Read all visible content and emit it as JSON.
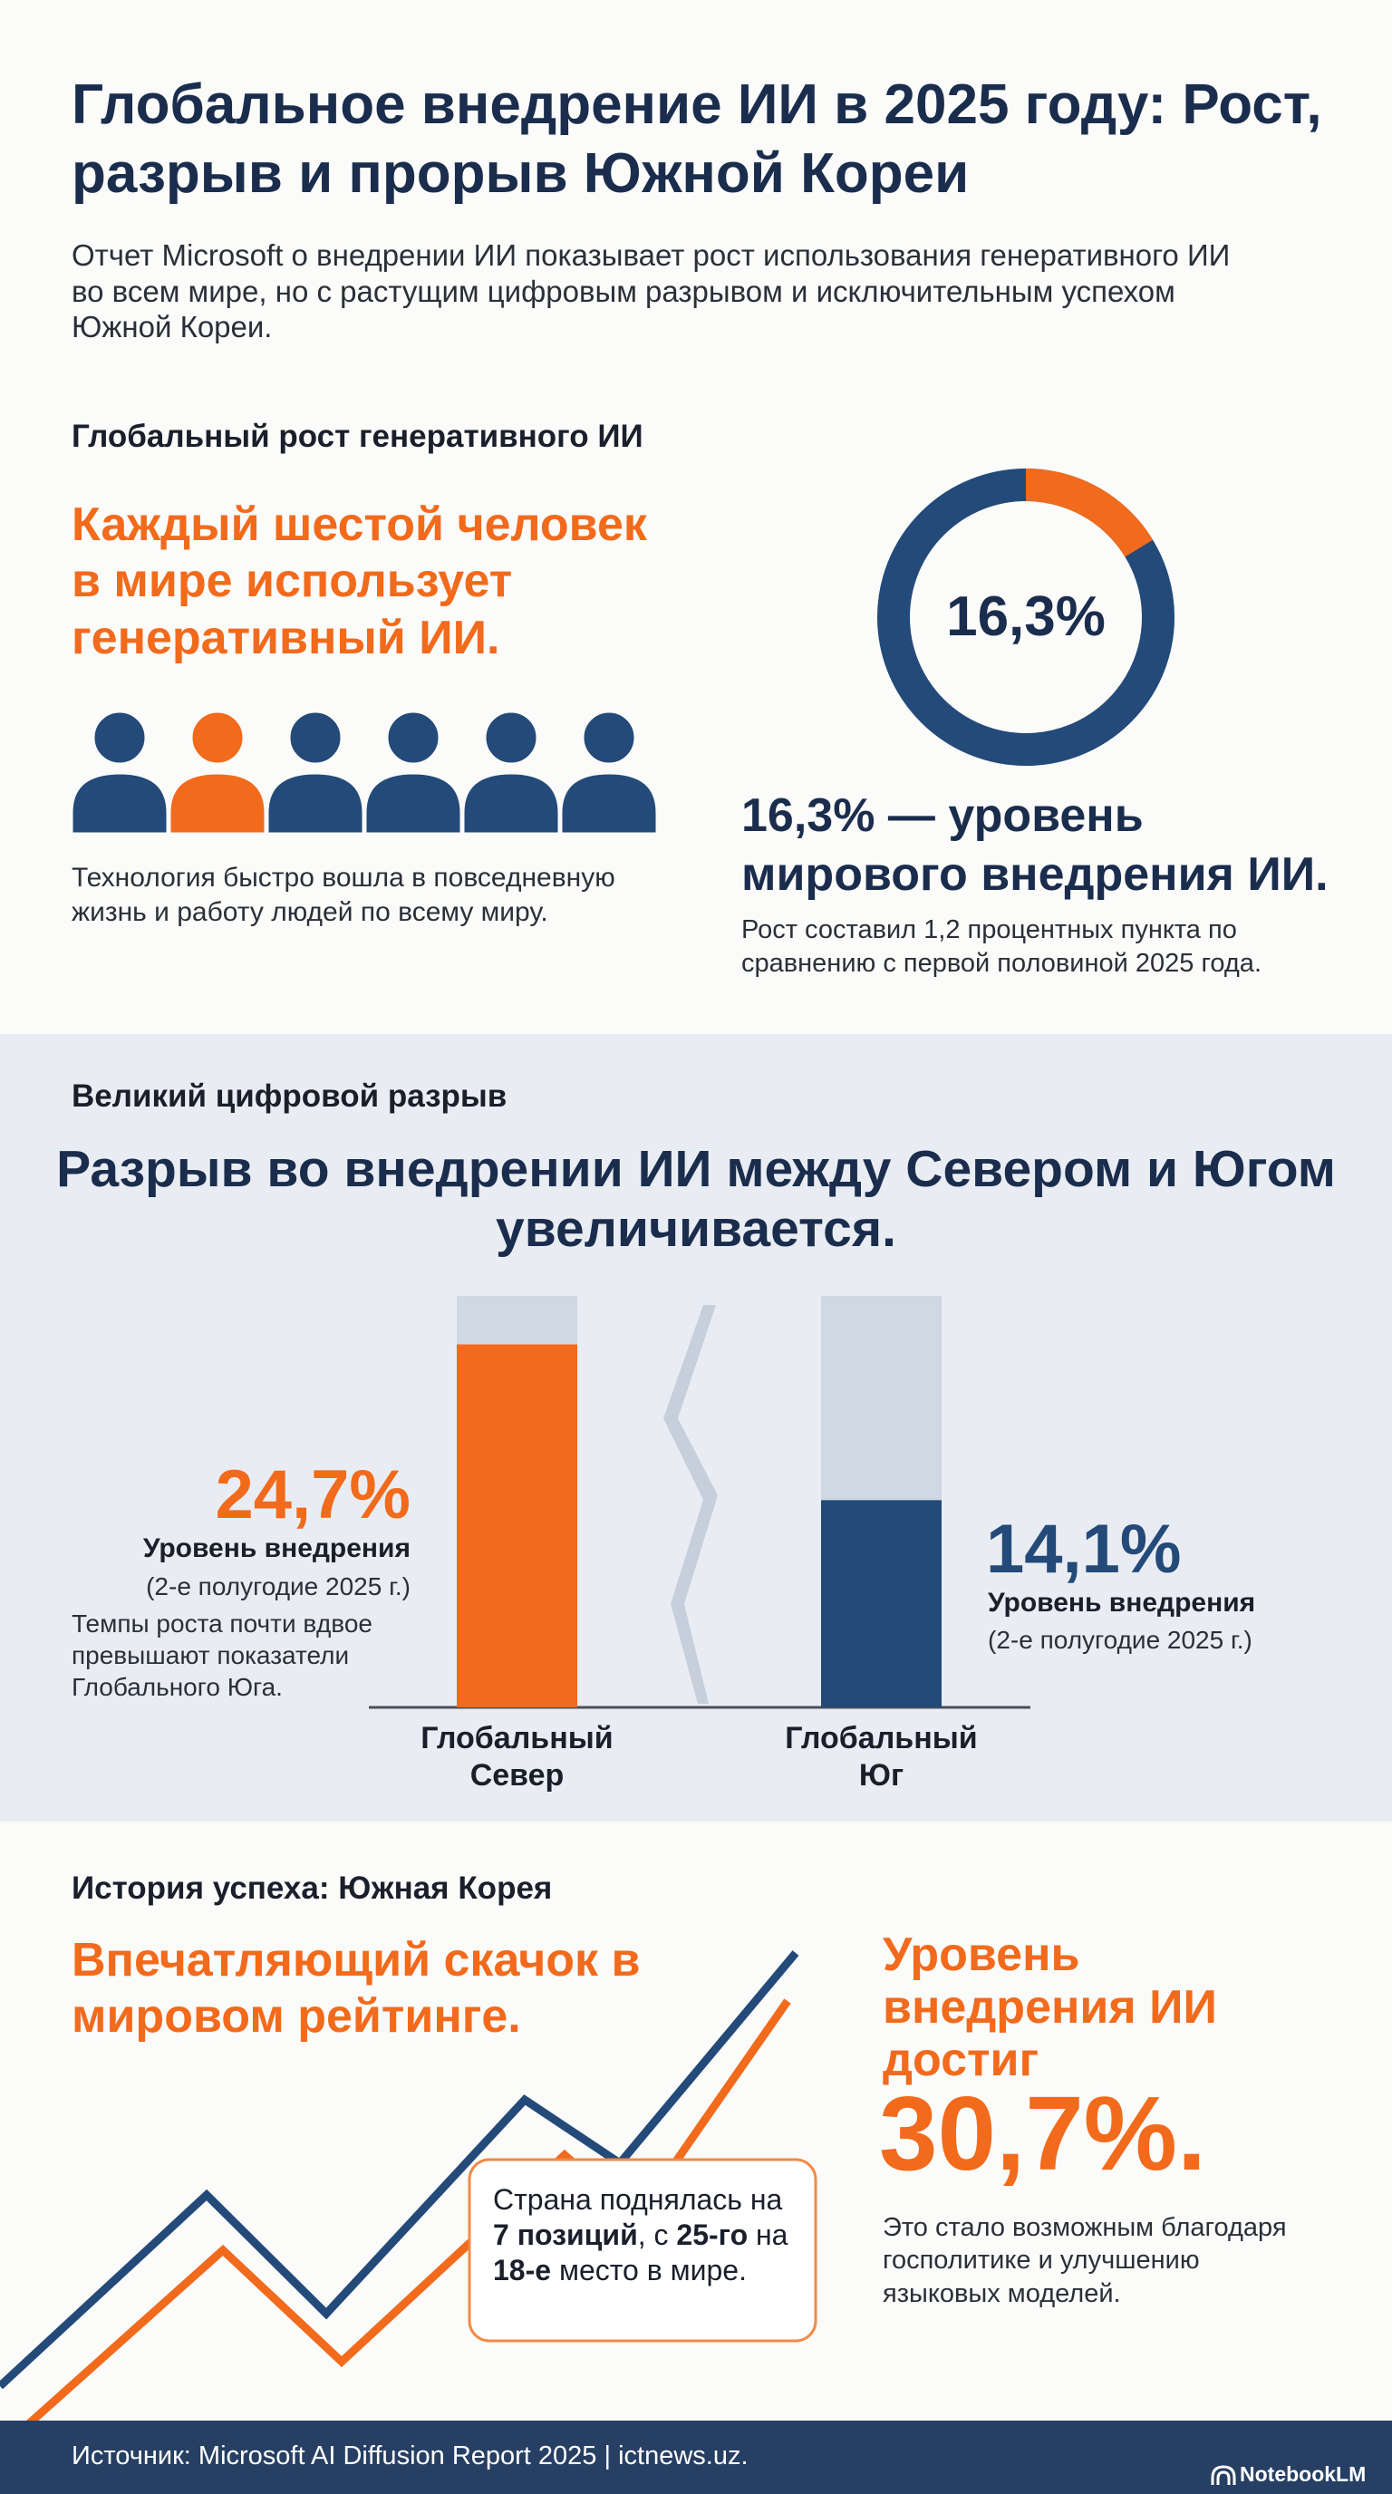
{
  "header": {
    "title": "Глобальное внедрение ИИ в 2025 году: Рост, разрыв и прорыв Южной Кореи",
    "subtitle": "Отчет Microsoft о внедрении ИИ показывает рост использования генеративного ИИ во всем мире, но с растущим цифровым разрывом и исключительным успехом Южной Кореи."
  },
  "growth": {
    "heading": "Глобальный рост генеративного ИИ",
    "headline": "Каждый шестой человек в мире использует генеративный ИИ.",
    "text": "Технология быстро вошла в повседневную жизнь и работу людей по всему миру.",
    "stat_title": "16,3% — уровень мирового внедрения ИИ.",
    "stat_text": "Рост составил 1,2 процентных пункта по сравнению с первой половиной 2025 года."
  },
  "divide": {
    "heading": "Великий цифровой разрыв",
    "headline": "Разрыв во внедрении ИИ между Севером и Югом увеличивается.",
    "north_label": "Уровень внедрения",
    "north_period": "(2-е полугодие 2025 г.)",
    "north_note": "Темпы роста почти вдвое превышают показатели Глобального Юга.",
    "south_label": "Уровень внедрения",
    "south_period": "(2-е полугодие 2025 г.)"
  },
  "korea": {
    "heading": "История успеха: Южная Корея",
    "headline": "Впечатляющий скачок в мировом рейтинге.",
    "callout": [
      {
        "text": "Страна поднялась на ",
        "bold": false
      },
      {
        "text": "7 позиций",
        "bold": true
      },
      {
        "text": ", с ",
        "bold": false
      },
      {
        "text": "25-го",
        "bold": true
      },
      {
        "text": " на ",
        "bold": false
      },
      {
        "text": "18-е",
        "bold": true
      },
      {
        "text": " место в мире.",
        "bold": false
      }
    ],
    "stat_title": "Уровень внедрения ИИ достиг",
    "stat_value": "30,7%.",
    "stat_text": "Это стало возможным благодаря госполитике и улучшению языковых моделей."
  },
  "footer": {
    "source": "Источник: Microsoft AI Diffusion Report 2025 | ictnews.uz.",
    "brand": "NotebookLM"
  },
  "chart_data": [
    {
      "type": "donut",
      "values": [
        16.3
      ],
      "value_labels": [
        "16,3%"
      ],
      "range": [
        0,
        100
      ],
      "color": "#f26a1b",
      "track_color": "#234a78"
    },
    {
      "type": "bar",
      "categories": [
        "Глобальный Север",
        "Глобальный Юг"
      ],
      "values": [
        24.7,
        14.1
      ],
      "value_labels": [
        "24,7%",
        "14,1%"
      ],
      "colors": [
        "#f26a1b",
        "#234a78"
      ],
      "label_colors": [
        "#f26a1b",
        "#234a78"
      ],
      "track_color": "#cfd8e3",
      "ylim": [
        0,
        28
      ]
    }
  ]
}
